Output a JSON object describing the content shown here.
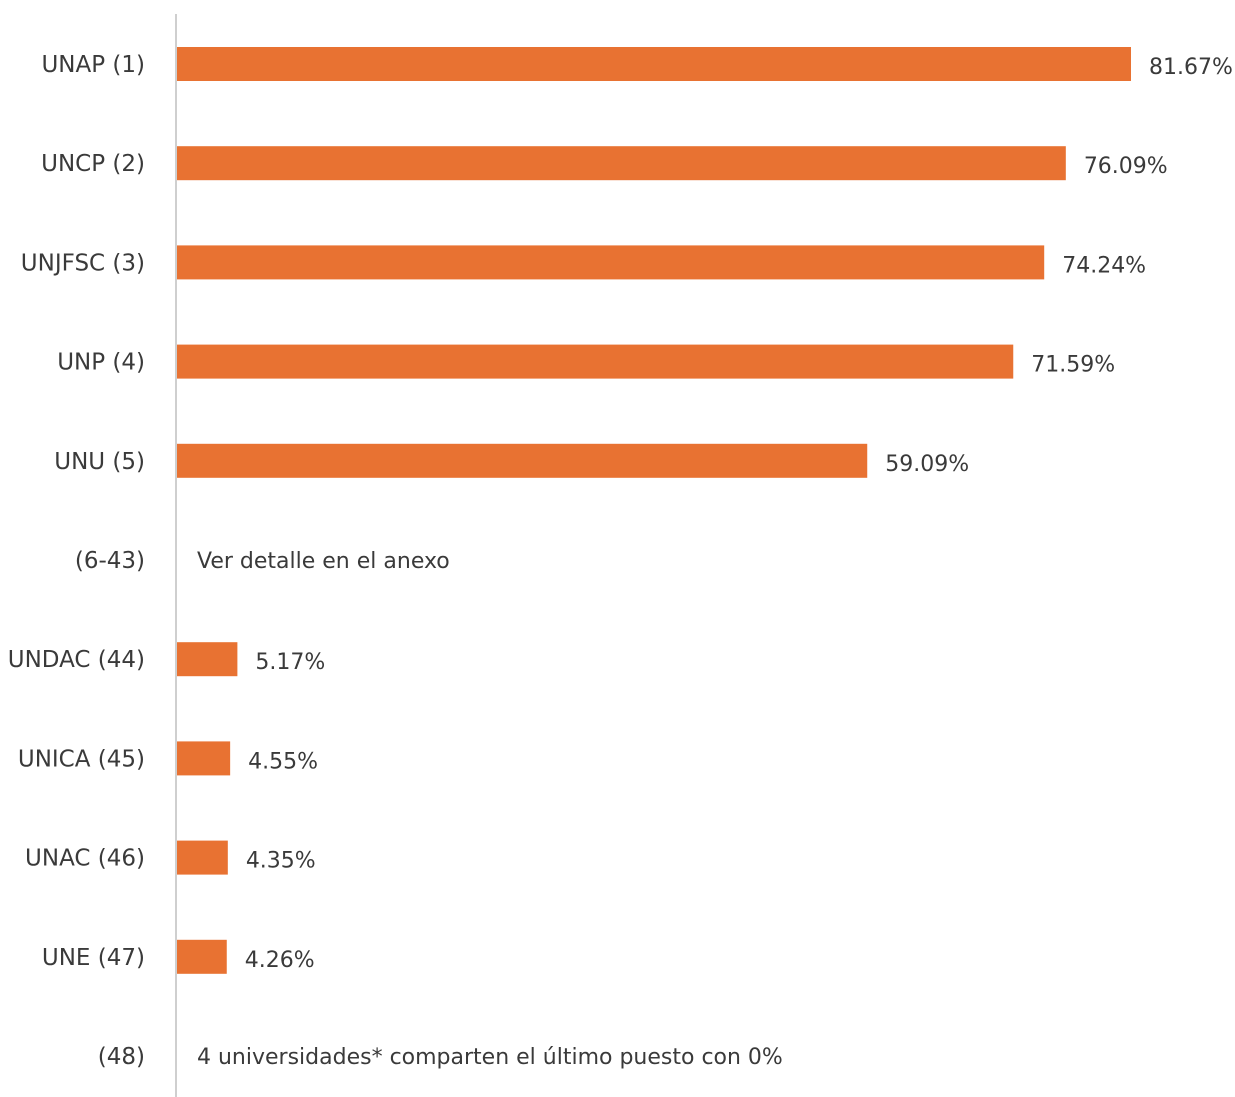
{
  "chart_data": {
    "type": "bar",
    "orientation": "horizontal",
    "title": "",
    "xlabel": "",
    "ylabel": "",
    "xlim": [
      0,
      100
    ],
    "grid": false,
    "bar_color": "#E87232",
    "rows": [
      {
        "label": "UNAP (1)",
        "value": 81.67,
        "value_label": "81.67%"
      },
      {
        "label": "UNCP (2)",
        "value": 76.09,
        "value_label": "76.09%"
      },
      {
        "label": "UNJFSC (3)",
        "value": 74.24,
        "value_label": "74.24%"
      },
      {
        "label": "UNP (4)",
        "value": 71.59,
        "value_label": "71.59%"
      },
      {
        "label": "UNU (5)",
        "value": 59.09,
        "value_label": "59.09%"
      },
      {
        "label": "(6-43)",
        "value": null,
        "note": "Ver detalle en el anexo"
      },
      {
        "label": "UNDAC (44)",
        "value": 5.17,
        "value_label": "5.17%"
      },
      {
        "label": "UNICA (45)",
        "value": 4.55,
        "value_label": "4.55%"
      },
      {
        "label": "UNAC (46)",
        "value": 4.35,
        "value_label": "4.35%"
      },
      {
        "label": "UNE (47)",
        "value": 4.26,
        "value_label": "4.26%"
      },
      {
        "label": "(48)",
        "value": null,
        "note": "4 universidades* comparten el último puesto con 0%"
      }
    ]
  }
}
